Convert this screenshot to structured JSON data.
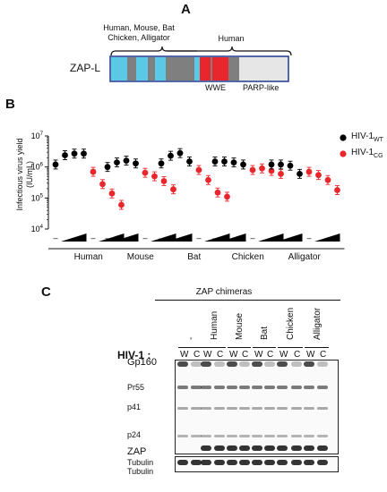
{
  "panel_a": {
    "letter": "A",
    "bracket_left_label": "Human, Mouse, Bat\nChicken, Alligator",
    "bracket_right_label": "Human",
    "protein_label": "ZAP-L",
    "domain_wwe": "WWE",
    "domain_parp": "PARP-like",
    "colors": {
      "cyan": "#5bc8e6",
      "gray": "#7f7f7f",
      "red": "#e8262c",
      "light": "#e6e6e6",
      "outline": "#1f3a93"
    }
  },
  "panel_b": {
    "letter": "B",
    "legend": [
      {
        "label": "HIV-1",
        "sub": "WT",
        "color": "#000000"
      },
      {
        "label": "HIV-1",
        "sub": "CG",
        "color": "#e8262c"
      }
    ]
  },
  "chart_data": {
    "type": "scatter",
    "ylabel": "Infectious virus yield\n(IU/mL)",
    "yscale": "log",
    "ylim": [
      10000,
      10000000
    ],
    "yticks": [
      "10^4",
      "10^5",
      "10^6",
      "10^7"
    ],
    "groups": [
      "Human",
      "Mouse",
      "Bat",
      "Chicken",
      "Alligator"
    ],
    "dose_labels": [
      "–",
      "–"
    ],
    "series": [
      {
        "name": "HIV-1WT",
        "color": "#000000",
        "values": [
          [
            1200000,
            2400000,
            2700000,
            2700000
          ],
          [
            1000000,
            1400000,
            1600000,
            1300000
          ],
          [
            1300000,
            2300000,
            2800000,
            1500000
          ],
          [
            1500000,
            1500000,
            1400000,
            1200000
          ],
          [
            1200000,
            1200000,
            1100000,
            600000
          ]
        ]
      },
      {
        "name": "HIV-1CG",
        "color": "#e8262c",
        "values": [
          [
            700000,
            280000,
            140000,
            60000
          ],
          [
            650000,
            500000,
            350000,
            190000
          ],
          [
            800000,
            380000,
            150000,
            110000
          ],
          [
            800000,
            900000,
            750000,
            600000
          ],
          [
            700000,
            550000,
            380000,
            180000
          ]
        ]
      }
    ]
  },
  "panel_c": {
    "letter": "C",
    "header": "ZAP chimeras",
    "lane_groups": [
      "-",
      "Human",
      "Mouse",
      "Bat",
      "Chicken",
      "Alligator"
    ],
    "hiv_label": "HIV-1 :",
    "lanes": [
      "W",
      "C",
      "W",
      "C",
      "W",
      "C",
      "W",
      "C",
      "W",
      "C",
      "W",
      "C"
    ],
    "blots": [
      "Gp160",
      "Pr55",
      "p41",
      "p24",
      "ZAP",
      "Tubulin"
    ]
  }
}
